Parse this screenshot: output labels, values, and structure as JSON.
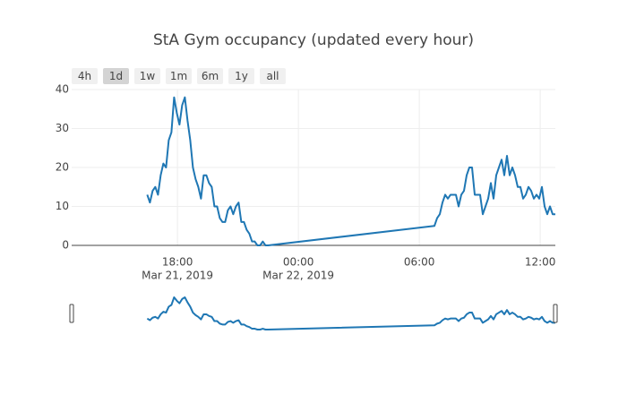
{
  "chart_data": {
    "type": "line",
    "title": "StA Gym occupancy (updated every hour)",
    "range_buttons": [
      "4h",
      "1d",
      "1w",
      "1m",
      "6m",
      "1y",
      "all"
    ],
    "active_button": 1,
    "xlim": [
      "2019-03-21 12:45",
      "2019-03-22 12:45"
    ],
    "xticks": [
      {
        "value": "2019-03-21 18:00",
        "label": [
          "18:00",
          "Mar 21, 2019"
        ]
      },
      {
        "value": "2019-03-22 00:00",
        "label": [
          "00:00",
          "Mar 22, 2019"
        ]
      },
      {
        "value": "2019-03-22 06:00",
        "label": [
          "06:00"
        ]
      },
      {
        "value": "2019-03-22 12:00",
        "label": [
          "12:00"
        ]
      }
    ],
    "ylim": [
      0,
      40
    ],
    "yticks": [
      0,
      10,
      20,
      30,
      40
    ],
    "grid": true,
    "range_slider": true,
    "x": [
      "2019-03-21 16:30",
      "2019-03-21 16:38",
      "2019-03-21 16:46",
      "2019-03-21 16:54",
      "2019-03-21 17:02",
      "2019-03-21 17:10",
      "2019-03-21 17:18",
      "2019-03-21 17:26",
      "2019-03-21 17:34",
      "2019-03-21 17:42",
      "2019-03-21 17:50",
      "2019-03-21 17:58",
      "2019-03-21 18:06",
      "2019-03-21 18:14",
      "2019-03-21 18:22",
      "2019-03-21 18:30",
      "2019-03-21 18:38",
      "2019-03-21 18:46",
      "2019-03-21 18:54",
      "2019-03-21 19:02",
      "2019-03-21 19:10",
      "2019-03-21 19:18",
      "2019-03-21 19:26",
      "2019-03-21 19:34",
      "2019-03-21 19:42",
      "2019-03-21 19:50",
      "2019-03-21 19:58",
      "2019-03-21 20:06",
      "2019-03-21 20:14",
      "2019-03-21 20:22",
      "2019-03-21 20:30",
      "2019-03-21 20:38",
      "2019-03-21 20:46",
      "2019-03-21 20:54",
      "2019-03-21 21:02",
      "2019-03-21 21:10",
      "2019-03-21 21:18",
      "2019-03-21 21:26",
      "2019-03-21 21:34",
      "2019-03-21 21:42",
      "2019-03-21 21:50",
      "2019-03-21 21:58",
      "2019-03-21 22:06",
      "2019-03-21 22:14",
      "2019-03-21 22:22",
      "2019-03-21 22:30",
      "2019-03-22 06:45",
      "2019-03-22 06:53",
      "2019-03-22 07:01",
      "2019-03-22 07:09",
      "2019-03-22 07:17",
      "2019-03-22 07:25",
      "2019-03-22 07:33",
      "2019-03-22 07:41",
      "2019-03-22 07:49",
      "2019-03-22 07:57",
      "2019-03-22 08:05",
      "2019-03-22 08:13",
      "2019-03-22 08:21",
      "2019-03-22 08:29",
      "2019-03-22 08:37",
      "2019-03-22 08:45",
      "2019-03-22 08:53",
      "2019-03-22 09:01",
      "2019-03-22 09:09",
      "2019-03-22 09:17",
      "2019-03-22 09:25",
      "2019-03-22 09:33",
      "2019-03-22 09:41",
      "2019-03-22 09:49",
      "2019-03-22 09:57",
      "2019-03-22 10:05",
      "2019-03-22 10:13",
      "2019-03-22 10:21",
      "2019-03-22 10:29",
      "2019-03-22 10:37",
      "2019-03-22 10:45",
      "2019-03-22 10:53",
      "2019-03-22 11:01",
      "2019-03-22 11:09",
      "2019-03-22 11:17",
      "2019-03-22 11:25",
      "2019-03-22 11:33",
      "2019-03-22 11:41",
      "2019-03-22 11:49",
      "2019-03-22 11:57",
      "2019-03-22 12:05",
      "2019-03-22 12:13",
      "2019-03-22 12:21",
      "2019-03-22 12:29",
      "2019-03-22 12:37",
      "2019-03-22 12:45"
    ],
    "series": [
      {
        "color": "#1f77b4",
        "values": [
          13,
          11,
          14,
          15,
          13,
          18,
          21,
          20,
          27,
          29,
          38,
          34,
          31,
          36,
          38,
          32,
          27,
          20,
          17,
          15,
          12,
          18,
          18,
          16,
          15,
          10,
          10,
          7,
          6,
          6,
          9,
          10,
          8,
          10,
          11,
          6,
          6,
          4,
          3,
          1,
          1,
          0,
          0,
          1,
          0,
          0,
          5,
          7,
          8,
          11,
          13,
          12,
          13,
          13,
          13,
          10,
          13,
          14,
          18,
          20,
          20,
          13,
          13,
          13,
          8,
          10,
          12,
          16,
          12,
          18,
          20,
          22,
          18,
          23,
          18,
          20,
          18,
          15,
          15,
          12,
          13,
          15,
          14,
          12,
          13,
          12,
          15,
          10,
          8,
          10,
          8,
          8
        ]
      }
    ]
  }
}
